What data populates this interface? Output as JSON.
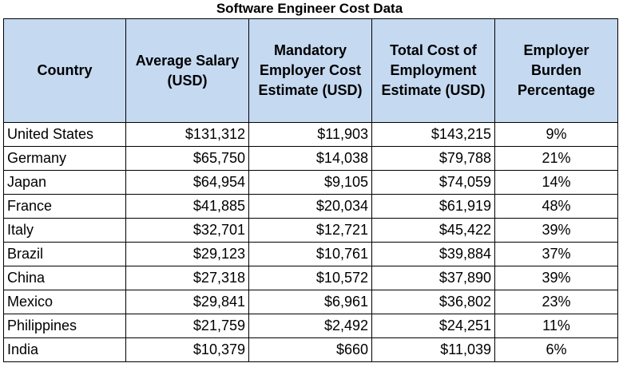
{
  "title": "Software Engineer Cost Data",
  "table": {
    "headers": [
      "Country",
      "Average Salary (USD)",
      "Mandatory Employer Cost Estimate (USD)",
      "Total Cost of Employment Estimate (USD)",
      "Employer Burden Percentage"
    ],
    "rows": [
      {
        "country": "United States",
        "salary": "$131,312",
        "mandatory": "$11,903",
        "total": "$143,215",
        "burden": "9%"
      },
      {
        "country": "Germany",
        "salary": "$65,750",
        "mandatory": "$14,038",
        "total": "$79,788",
        "burden": "21%"
      },
      {
        "country": "Japan",
        "salary": "$64,954",
        "mandatory": "$9,105",
        "total": "$74,059",
        "burden": "14%"
      },
      {
        "country": "France",
        "salary": "$41,885",
        "mandatory": "$20,034",
        "total": "$61,919",
        "burden": "48%"
      },
      {
        "country": "Italy",
        "salary": "$32,701",
        "mandatory": "$12,721",
        "total": "$45,422",
        "burden": "39%"
      },
      {
        "country": "Brazil",
        "salary": "$29,123",
        "mandatory": "$10,761",
        "total": "$39,884",
        "burden": "37%"
      },
      {
        "country": "China",
        "salary": "$27,318",
        "mandatory": "$10,572",
        "total": "$37,890",
        "burden": "39%"
      },
      {
        "country": "Mexico",
        "salary": "$29,841",
        "mandatory": "$6,961",
        "total": "$36,802",
        "burden": "23%"
      },
      {
        "country": "Philippines",
        "salary": "$21,759",
        "mandatory": "$2,492",
        "total": "$24,251",
        "burden": "11%"
      },
      {
        "country": "India",
        "salary": "$10,379",
        "mandatory": "$660",
        "total": "$11,039",
        "burden": "6%"
      }
    ]
  },
  "colors": {
    "header_fill": "#c5d9f1",
    "border": "#000000"
  }
}
